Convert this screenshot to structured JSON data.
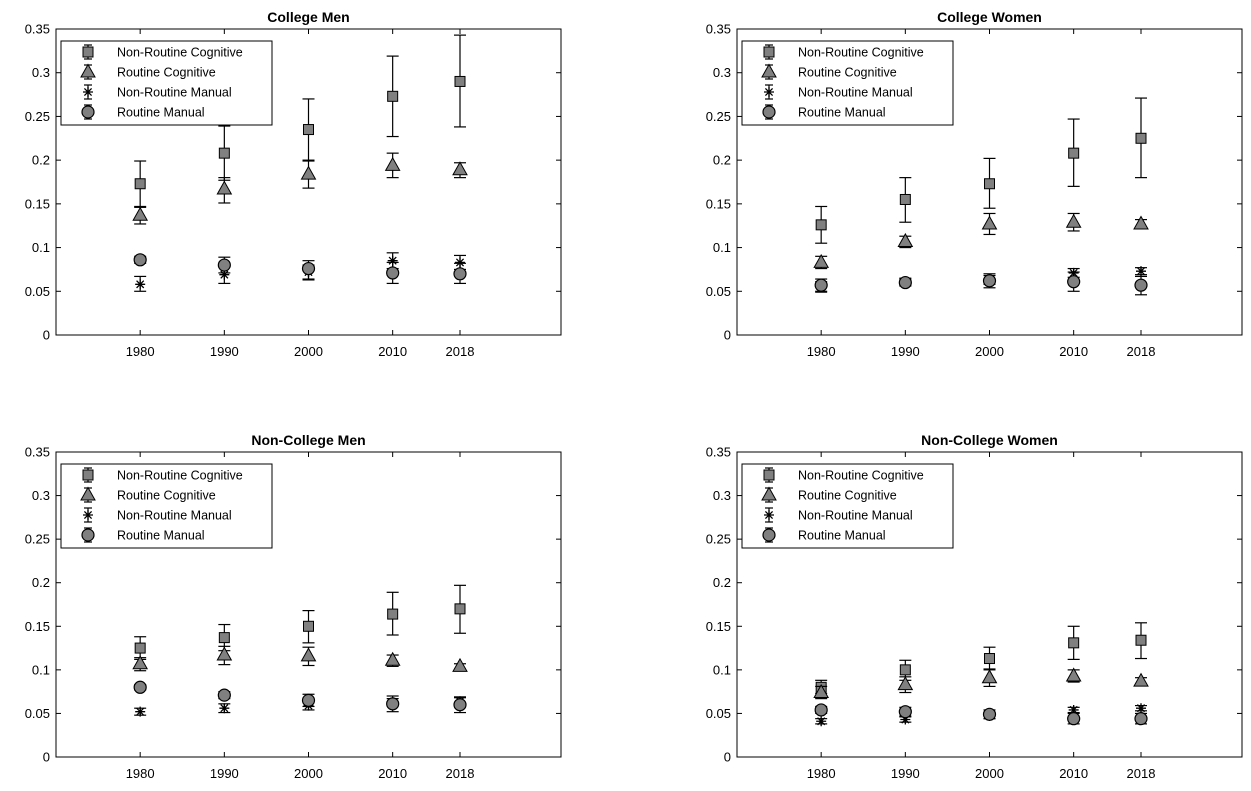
{
  "figure": {
    "colors": {
      "axis": "#000000",
      "marker_fill": "#808080",
      "marker_stroke": "#000000",
      "background": "#ffffff"
    }
  },
  "chart_data": [
    {
      "type": "scatter",
      "title": "College Men",
      "xlabel": "",
      "ylabel": "",
      "x_ticks": [
        "1980",
        "1990",
        "2000",
        "2010",
        "2018"
      ],
      "x_tick_values": [
        1980,
        1990,
        2000,
        2010,
        2018
      ],
      "xlim": [
        1970,
        2030
      ],
      "ylim": [
        0,
        0.35
      ],
      "y_ticks": [
        "0",
        "0.05",
        "0.1",
        "0.15",
        "0.2",
        "0.25",
        "0.3",
        "0.35"
      ],
      "grid": false,
      "legend_position": "top-left",
      "series": [
        {
          "name": "Non-Routine Cognitive",
          "marker": "square",
          "x": [
            1980,
            1990,
            2000,
            2010,
            2018
          ],
          "values": [
            0.173,
            0.208,
            0.235,
            0.273,
            0.29
          ],
          "err_low": [
            0.147,
            0.177,
            0.199,
            0.227,
            0.238
          ],
          "err_high": [
            0.199,
            0.239,
            0.27,
            0.319,
            0.343
          ]
        },
        {
          "name": "Routine Cognitive",
          "marker": "triangle",
          "x": [
            1980,
            1990,
            2000,
            2010,
            2018
          ],
          "values": [
            0.137,
            0.167,
            0.184,
            0.194,
            0.189
          ],
          "err_low": [
            0.127,
            0.151,
            0.168,
            0.18,
            0.18
          ],
          "err_high": [
            0.146,
            0.18,
            0.2,
            0.208,
            0.197
          ]
        },
        {
          "name": "Non-Routine Manual",
          "marker": "asterisk",
          "x": [
            1980,
            1990,
            2000,
            2010,
            2018
          ],
          "values": [
            0.058,
            0.069,
            0.072,
            0.085,
            0.083
          ],
          "err_low": [
            0.05,
            0.059,
            0.064,
            0.076,
            0.075
          ],
          "err_high": [
            0.067,
            0.078,
            0.08,
            0.094,
            0.091
          ]
        },
        {
          "name": "Routine Manual",
          "marker": "circle",
          "x": [
            1980,
            1990,
            2000,
            2010,
            2018
          ],
          "values": [
            0.086,
            0.08,
            0.076,
            0.071,
            0.07
          ],
          "err_low": [
            0.082,
            0.071,
            0.063,
            0.059,
            0.059
          ],
          "err_high": [
            0.09,
            0.089,
            0.085,
            0.083,
            0.082
          ]
        }
      ]
    },
    {
      "type": "scatter",
      "title": "College Women",
      "xlabel": "",
      "ylabel": "",
      "x_ticks": [
        "1980",
        "1990",
        "2000",
        "2010",
        "2018"
      ],
      "x_tick_values": [
        1980,
        1990,
        2000,
        2010,
        2018
      ],
      "xlim": [
        1970,
        2030
      ],
      "ylim": [
        0,
        0.35
      ],
      "y_ticks": [
        "0",
        "0.05",
        "0.1",
        "0.15",
        "0.2",
        "0.25",
        "0.3",
        "0.35"
      ],
      "grid": false,
      "legend_position": "top-left",
      "series": [
        {
          "name": "Non-Routine Cognitive",
          "marker": "square",
          "x": [
            1980,
            1990,
            2000,
            2010,
            2018
          ],
          "values": [
            0.126,
            0.155,
            0.173,
            0.208,
            0.225
          ],
          "err_low": [
            0.105,
            0.129,
            0.145,
            0.17,
            0.18
          ],
          "err_high": [
            0.147,
            0.18,
            0.202,
            0.247,
            0.271
          ]
        },
        {
          "name": "Routine Cognitive",
          "marker": "triangle",
          "x": [
            1980,
            1990,
            2000,
            2010,
            2018
          ],
          "values": [
            0.083,
            0.107,
            0.127,
            0.129,
            0.127
          ],
          "err_low": [
            0.076,
            0.1,
            0.115,
            0.119,
            0.122
          ],
          "err_high": [
            0.09,
            0.113,
            0.139,
            0.139,
            0.132
          ]
        },
        {
          "name": "Non-Routine Manual",
          "marker": "asterisk",
          "x": [
            1980,
            1990,
            2000,
            2010,
            2018
          ],
          "values": [
            0.055,
            0.061,
            0.063,
            0.071,
            0.073
          ],
          "err_low": [
            0.049,
            0.057,
            0.058,
            0.066,
            0.069
          ],
          "err_high": [
            0.061,
            0.065,
            0.068,
            0.076,
            0.077
          ]
        },
        {
          "name": "Routine Manual",
          "marker": "circle",
          "x": [
            1980,
            1990,
            2000,
            2010,
            2018
          ],
          "values": [
            0.057,
            0.06,
            0.062,
            0.061,
            0.057
          ],
          "err_low": [
            0.05,
            0.056,
            0.054,
            0.05,
            0.046
          ],
          "err_high": [
            0.064,
            0.064,
            0.07,
            0.072,
            0.067
          ]
        }
      ]
    },
    {
      "type": "scatter",
      "title": "Non-College Men",
      "xlabel": "",
      "ylabel": "",
      "x_ticks": [
        "1980",
        "1990",
        "2000",
        "2010",
        "2018"
      ],
      "x_tick_values": [
        1980,
        1990,
        2000,
        2010,
        2018
      ],
      "xlim": [
        1970,
        2030
      ],
      "ylim": [
        0,
        0.35
      ],
      "y_ticks": [
        "0",
        "0.05",
        "0.1",
        "0.15",
        "0.2",
        "0.25",
        "0.3",
        "0.35"
      ],
      "grid": false,
      "legend_position": "top-left",
      "series": [
        {
          "name": "Non-Routine Cognitive",
          "marker": "square",
          "x": [
            1980,
            1990,
            2000,
            2010,
            2018
          ],
          "values": [
            0.125,
            0.137,
            0.15,
            0.164,
            0.17
          ],
          "err_low": [
            0.112,
            0.122,
            0.131,
            0.14,
            0.142
          ],
          "err_high": [
            0.138,
            0.152,
            0.168,
            0.189,
            0.197
          ]
        },
        {
          "name": "Routine Cognitive",
          "marker": "triangle",
          "x": [
            1980,
            1990,
            2000,
            2010,
            2018
          ],
          "values": [
            0.107,
            0.117,
            0.116,
            0.111,
            0.104
          ],
          "err_low": [
            0.099,
            0.106,
            0.105,
            0.104,
            0.101
          ],
          "err_high": [
            0.114,
            0.127,
            0.126,
            0.117,
            0.107
          ]
        },
        {
          "name": "Non-Routine Manual",
          "marker": "asterisk",
          "x": [
            1980,
            1990,
            2000,
            2010,
            2018
          ],
          "values": [
            0.052,
            0.056,
            0.059,
            0.063,
            0.064
          ],
          "err_low": [
            0.048,
            0.051,
            0.054,
            0.059,
            0.06
          ],
          "err_high": [
            0.056,
            0.061,
            0.064,
            0.067,
            0.068
          ]
        },
        {
          "name": "Routine Manual",
          "marker": "circle",
          "x": [
            1980,
            1990,
            2000,
            2010,
            2018
          ],
          "values": [
            0.08,
            0.071,
            0.065,
            0.061,
            0.06
          ],
          "err_low": [
            0.077,
            0.067,
            0.058,
            0.052,
            0.051
          ],
          "err_high": [
            0.083,
            0.075,
            0.072,
            0.07,
            0.069
          ]
        }
      ]
    },
    {
      "type": "scatter",
      "title": "Non-College Women",
      "xlabel": "",
      "ylabel": "",
      "x_ticks": [
        "1980",
        "1990",
        "2000",
        "2010",
        "2018"
      ],
      "x_tick_values": [
        1980,
        1990,
        2000,
        2010,
        2018
      ],
      "xlim": [
        1970,
        2030
      ],
      "ylim": [
        0,
        0.35
      ],
      "y_ticks": [
        "0",
        "0.05",
        "0.1",
        "0.15",
        "0.2",
        "0.25",
        "0.3",
        "0.35"
      ],
      "grid": false,
      "legend_position": "top-left",
      "series": [
        {
          "name": "Non-Routine Cognitive",
          "marker": "square",
          "x": [
            1980,
            1990,
            2000,
            2010,
            2018
          ],
          "values": [
            0.08,
            0.1,
            0.113,
            0.131,
            0.134
          ],
          "err_low": [
            0.073,
            0.088,
            0.1,
            0.112,
            0.113
          ],
          "err_high": [
            0.088,
            0.111,
            0.126,
            0.15,
            0.154
          ]
        },
        {
          "name": "Routine Cognitive",
          "marker": "triangle",
          "x": [
            1980,
            1990,
            2000,
            2010,
            2018
          ],
          "values": [
            0.074,
            0.083,
            0.091,
            0.093,
            0.087
          ],
          "err_low": [
            0.067,
            0.074,
            0.081,
            0.086,
            0.083
          ],
          "err_high": [
            0.081,
            0.092,
            0.101,
            0.1,
            0.091
          ]
        },
        {
          "name": "Non-Routine Manual",
          "marker": "asterisk",
          "x": [
            1980,
            1990,
            2000,
            2010,
            2018
          ],
          "values": [
            0.041,
            0.043,
            0.047,
            0.054,
            0.056
          ],
          "err_low": [
            0.038,
            0.04,
            0.044,
            0.051,
            0.053
          ],
          "err_high": [
            0.044,
            0.046,
            0.05,
            0.057,
            0.059
          ]
        },
        {
          "name": "Routine Manual",
          "marker": "circle",
          "x": [
            1980,
            1990,
            2000,
            2010,
            2018
          ],
          "values": [
            0.054,
            0.052,
            0.049,
            0.044,
            0.044
          ],
          "err_low": [
            0.05,
            0.047,
            0.044,
            0.038,
            0.038
          ],
          "err_high": [
            0.058,
            0.057,
            0.054,
            0.05,
            0.05
          ]
        }
      ]
    }
  ]
}
